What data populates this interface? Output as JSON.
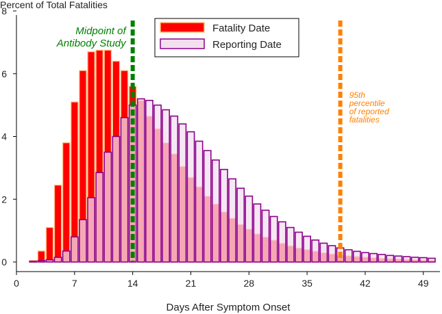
{
  "chart_data": {
    "type": "bar",
    "title": "Percent of Total Fatalities",
    "xlabel": "Days After Symptom Onset",
    "ylabel": "Percent of Total Fatalities",
    "xlim": [
      0,
      51
    ],
    "ylim": [
      0,
      8
    ],
    "xticks": [
      0,
      7,
      14,
      21,
      28,
      35,
      42,
      49
    ],
    "yticks": [
      0,
      2,
      4,
      6,
      8
    ],
    "grid": false,
    "legend_position": "top",
    "x": [
      2,
      3,
      4,
      5,
      6,
      7,
      8,
      9,
      10,
      11,
      12,
      13,
      14,
      15,
      16,
      17,
      18,
      19,
      20,
      21,
      22,
      23,
      24,
      25,
      26,
      27,
      28,
      29,
      30,
      31,
      32,
      33,
      34,
      35,
      36,
      37,
      38,
      39,
      40,
      41,
      42,
      43,
      44,
      45,
      46,
      47,
      48,
      49,
      50
    ],
    "series": [
      {
        "name": "Fatality Date",
        "fill": "#ff0000",
        "edge": "#ffbd80",
        "values": [
          0.05,
          0.35,
          1.1,
          2.45,
          3.8,
          5.1,
          6.1,
          6.7,
          6.75,
          6.75,
          6.4,
          6.1,
          5.6,
          5.15,
          4.65,
          4.25,
          3.8,
          3.45,
          3.05,
          2.7,
          2.4,
          2.1,
          1.85,
          1.6,
          1.4,
          1.2,
          1.05,
          0.9,
          0.8,
          0.7,
          0.6,
          0.52,
          0.45,
          0.4,
          0.35,
          0.3,
          0.26,
          0.22,
          0.2,
          0.18,
          0.16,
          0.14,
          0.12,
          0.11,
          0.1,
          0.09,
          0.08,
          0.07,
          0.06
        ]
      },
      {
        "name": "Reporting Date",
        "fill": "#f3dff0",
        "edge": "#8b008b",
        "values": [
          0.02,
          0.04,
          0.07,
          0.15,
          0.35,
          0.8,
          1.35,
          2.05,
          2.85,
          3.5,
          4.0,
          4.6,
          5.0,
          5.2,
          5.15,
          5.0,
          4.85,
          4.65,
          4.4,
          4.15,
          3.85,
          3.55,
          3.25,
          2.95,
          2.65,
          2.35,
          2.1,
          1.85,
          1.65,
          1.45,
          1.28,
          1.1,
          0.95,
          0.82,
          0.7,
          0.6,
          0.52,
          0.45,
          0.39,
          0.34,
          0.3,
          0.27,
          0.24,
          0.21,
          0.19,
          0.17,
          0.15,
          0.14,
          0.12
        ]
      }
    ],
    "annotations": [
      {
        "name": "antibody-midpoint",
        "x": 14,
        "color": "#008000",
        "lines": [
          "Midpoint of",
          "Antibody Study"
        ]
      },
      {
        "name": "p95-reported",
        "x": 39,
        "color": "#ff8000",
        "lines": [
          "95th",
          "percentile",
          "of reported",
          "fatalities"
        ]
      }
    ]
  }
}
